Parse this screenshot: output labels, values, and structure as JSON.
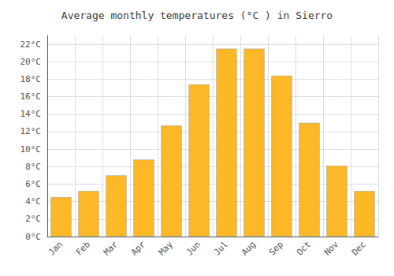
{
  "chart_data": {
    "type": "bar",
    "title": "Average monthly temperatures (°C ) in Sierro",
    "categories": [
      "Jan",
      "Feb",
      "Mar",
      "Apr",
      "May",
      "Jun",
      "Jul",
      "Aug",
      "Sep",
      "Oct",
      "Nov",
      "Dec"
    ],
    "values": [
      4.5,
      5.2,
      7.0,
      8.8,
      12.7,
      17.4,
      21.5,
      21.5,
      18.4,
      13.0,
      8.1,
      5.2
    ],
    "color": "#FDB827",
    "ylim": [
      0,
      23
    ],
    "yticks": [
      {
        "value": 0,
        "label": "0°C"
      },
      {
        "value": 2,
        "label": "2°C"
      },
      {
        "value": 4,
        "label": "4°C"
      },
      {
        "value": 6,
        "label": "6°C"
      },
      {
        "value": 8,
        "label": "8°C"
      },
      {
        "value": 10,
        "label": "10°C"
      },
      {
        "value": 12,
        "label": "12°C"
      },
      {
        "value": 14,
        "label": "14°C"
      },
      {
        "value": 16,
        "label": "16°C"
      },
      {
        "value": 18,
        "label": "18°C"
      },
      {
        "value": 20,
        "label": "20°C"
      },
      {
        "value": 22,
        "label": "22°C"
      }
    ],
    "grid": true
  }
}
